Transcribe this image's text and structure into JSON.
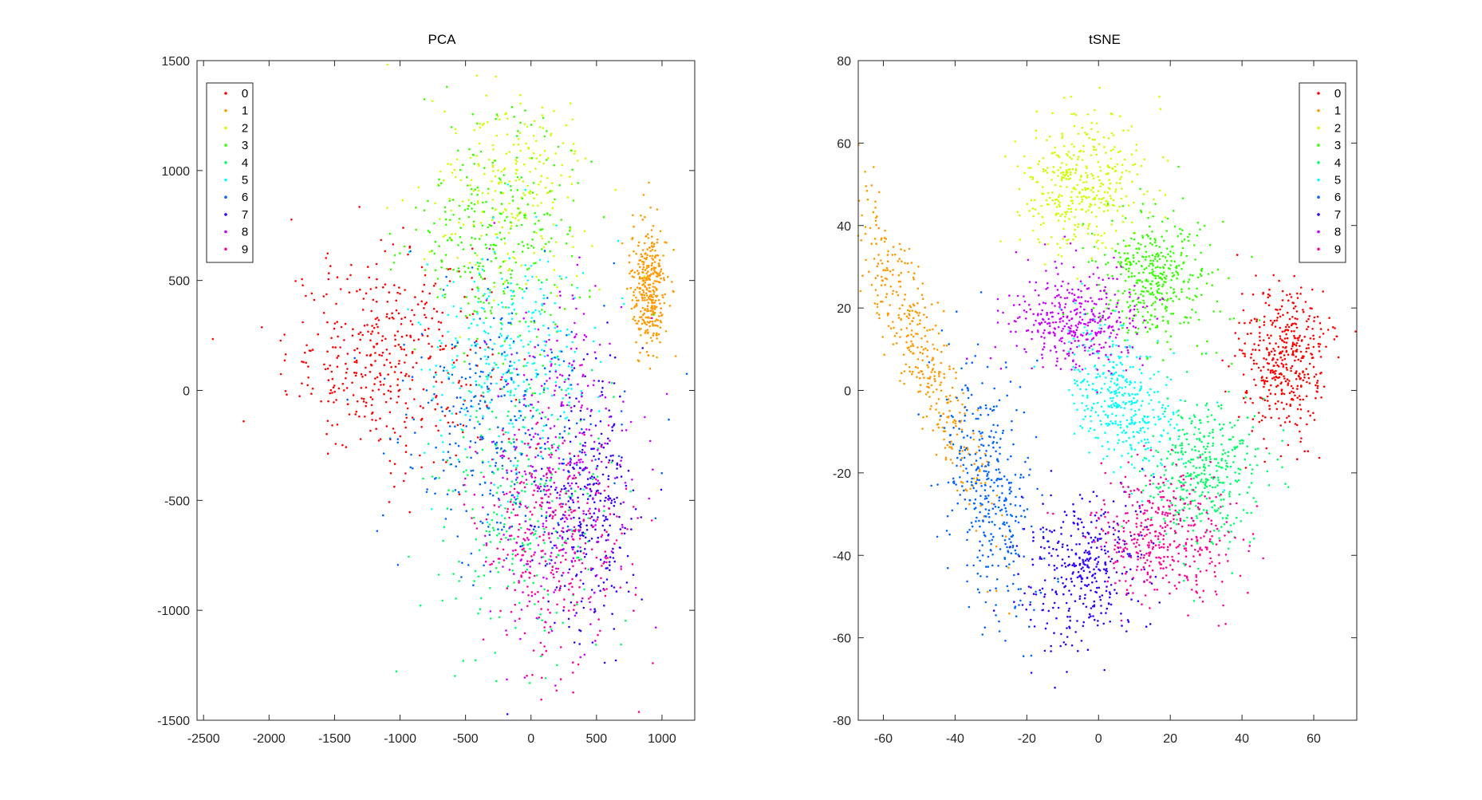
{
  "figure": {
    "background": "#ffffff",
    "class_colors": {
      "0": "#ff0000",
      "1": "#ff9900",
      "2": "#ccff00",
      "3": "#33ff00",
      "4": "#00ff66",
      "5": "#00ffff",
      "6": "#0066ff",
      "7": "#3300ff",
      "8": "#cc00ff",
      "9": "#ff0099"
    }
  },
  "chart_data": [
    {
      "type": "scatter",
      "title": "PCA",
      "xlabel": "",
      "ylabel": "",
      "xlim": [
        -2550,
        1250
      ],
      "ylim": [
        -1500,
        1500
      ],
      "xticks": [
        -2500,
        -2000,
        -1500,
        -1000,
        -500,
        0,
        500,
        1000
      ],
      "yticks": [
        -1500,
        -1000,
        -500,
        0,
        500,
        1000,
        1500
      ],
      "legend": {
        "position": "top-left",
        "entries": [
          "0",
          "1",
          "2",
          "3",
          "4",
          "5",
          "6",
          "7",
          "8",
          "9"
        ]
      },
      "grid": false,
      "clusters": [
        {
          "label": "0",
          "center": [
            -1100,
            150
          ],
          "spread": [
            380,
            230
          ],
          "n": 420
        },
        {
          "label": "1",
          "center": [
            900,
            470
          ],
          "spread": [
            70,
            150
          ],
          "n": 340
        },
        {
          "label": "2",
          "center": [
            -150,
            900
          ],
          "spread": [
            300,
            220
          ],
          "n": 240
        },
        {
          "label": "3",
          "center": [
            -250,
            700
          ],
          "spread": [
            330,
            260
          ],
          "n": 300
        },
        {
          "label": "4",
          "center": [
            -50,
            -500
          ],
          "spread": [
            330,
            330
          ],
          "n": 280
        },
        {
          "label": "5",
          "center": [
            -150,
            150
          ],
          "spread": [
            330,
            270
          ],
          "n": 300
        },
        {
          "label": "6",
          "center": [
            -250,
            -150
          ],
          "spread": [
            380,
            320
          ],
          "n": 320
        },
        {
          "label": "7",
          "center": [
            450,
            -550
          ],
          "spread": [
            200,
            300
          ],
          "n": 300
        },
        {
          "label": "8",
          "center": [
            200,
            -350
          ],
          "spread": [
            290,
            380
          ],
          "n": 330
        },
        {
          "label": "9",
          "center": [
            150,
            -650
          ],
          "spread": [
            280,
            260
          ],
          "n": 320
        }
      ]
    },
    {
      "type": "scatter",
      "title": "tSNE",
      "xlabel": "",
      "ylabel": "",
      "xlim": [
        -67,
        72
      ],
      "ylim": [
        -80,
        80
      ],
      "xticks": [
        -60,
        -40,
        -20,
        0,
        20,
        40,
        60
      ],
      "yticks": [
        -80,
        -60,
        -40,
        -20,
        0,
        20,
        40,
        60,
        80
      ],
      "legend": {
        "position": "top-right",
        "entries": [
          "0",
          "1",
          "2",
          "3",
          "4",
          "5",
          "6",
          "7",
          "8",
          "9"
        ]
      },
      "grid": false,
      "clusters": [
        {
          "label": "0",
          "center": [
            52,
            7
          ],
          "spread": [
            6,
            9
          ],
          "n": 420,
          "tilt": 0
        },
        {
          "label": "1",
          "center": [
            -50,
            10
          ],
          "spread": [
            3.8,
            24
          ],
          "n": 400,
          "tilt": 0.42
        },
        {
          "label": "2",
          "center": [
            -5,
            50
          ],
          "spread": [
            10,
            8
          ],
          "n": 380,
          "tilt": 0.4
        },
        {
          "label": "3",
          "center": [
            16,
            28
          ],
          "spread": [
            8,
            8
          ],
          "n": 400,
          "tilt": 0
        },
        {
          "label": "4",
          "center": [
            30,
            -20
          ],
          "spread": [
            8,
            9
          ],
          "n": 400,
          "tilt": 0
        },
        {
          "label": "5",
          "center": [
            6,
            -2
          ],
          "spread": [
            6,
            10
          ],
          "n": 380,
          "tilt": 0.75
        },
        {
          "label": "6",
          "center": [
            -31,
            -23
          ],
          "spread": [
            6,
            15
          ],
          "n": 380,
          "tilt": 0.2
        },
        {
          "label": "7",
          "center": [
            -4,
            -44
          ],
          "spread": [
            8,
            9
          ],
          "n": 360,
          "tilt": 0
        },
        {
          "label": "8",
          "center": [
            -7,
            17
          ],
          "spread": [
            9,
            6
          ],
          "n": 380,
          "tilt": 0
        },
        {
          "label": "9",
          "center": [
            18,
            -35
          ],
          "spread": [
            10,
            8
          ],
          "n": 400,
          "tilt": 0
        }
      ]
    }
  ]
}
